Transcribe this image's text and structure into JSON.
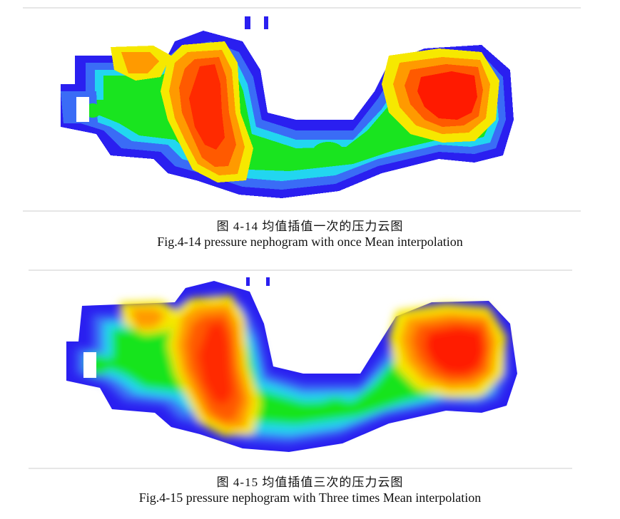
{
  "figures": [
    {
      "caption_cn": "图 4-14  均值插值一次的压力云图",
      "caption_en": "Fig.4-14 pressure nephogram with once Mean interpolation",
      "style": "pixelated"
    },
    {
      "caption_cn": "图 4-15  均值插值三次的压力云图",
      "caption_en": "Fig.4-15 pressure nephogram with Three times Mean interpolation",
      "style": "smooth"
    }
  ],
  "colors": {
    "outer": "#2a1ff0",
    "blue": "#3a6cf6",
    "cyan": "#22d6f0",
    "green": "#19e41f",
    "yellow": "#f6e800",
    "orange": "#ff9a00",
    "red": "#ff1a00",
    "rule": "#e6e6e6"
  }
}
